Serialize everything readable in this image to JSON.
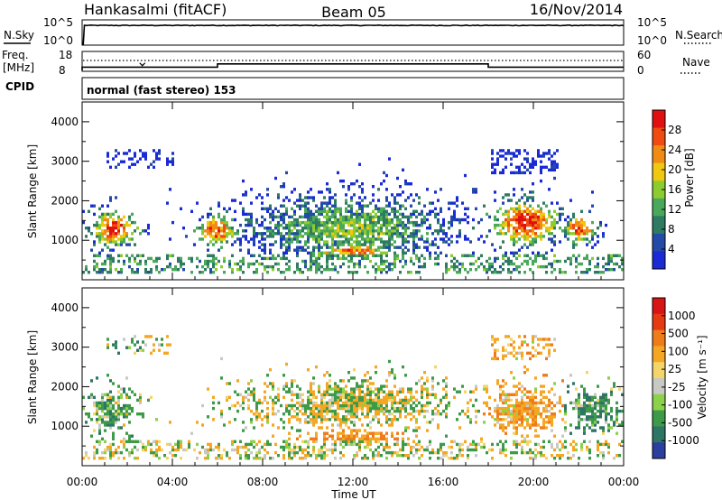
{
  "header": {
    "station": "Hankasalmi (fitACF)",
    "beam": "Beam 05",
    "date": "16/Nov/2014"
  },
  "noise_panel": {
    "left_label": "N.Sky",
    "right_label": "N.Search",
    "left_ticks": [
      "10^5",
      "10^0"
    ],
    "right_ticks": [
      "10^5",
      "10^0"
    ]
  },
  "freq_panel": {
    "left_label_1": "Freq.",
    "left_label_2": "[MHz]",
    "right_label": "Nave",
    "left_ticks": [
      "18",
      "8"
    ],
    "right_ticks": [
      "60",
      "0"
    ]
  },
  "cpid_panel": {
    "label": "CPID",
    "text": "normal (fast stereo) 153"
  },
  "power_panel": {
    "ylabel": "Slant Range [km]",
    "cbar_label": "Power [dB]",
    "cbar_ticks": [
      "28",
      "24",
      "20",
      "16",
      "12",
      "8",
      "4"
    ]
  },
  "velocity_panel": {
    "ylabel": "Slant Range [km]",
    "cbar_label": "Velocity [m s⁻¹]",
    "cbar_ticks": [
      "1000",
      "500",
      "100",
      "25",
      "-25",
      "-100",
      "-500",
      "-1000"
    ]
  },
  "x_axis": {
    "label": "Time UT",
    "ticks": [
      "00:00",
      "04:00",
      "08:00",
      "12:00",
      "16:00",
      "20:00",
      "00:00"
    ]
  },
  "colors": {
    "power_scale": [
      "#1a2bd6",
      "#244aa8",
      "#2e7a62",
      "#4aa85a",
      "#8ccc2e",
      "#f0c810",
      "#f08c14",
      "#f04b10",
      "#e01010"
    ],
    "velocity_scale": [
      "#2a3f9e",
      "#2e7566",
      "#3d9a48",
      "#8cd14a",
      "#c8c8c4",
      "#f5d46a",
      "#f5a623",
      "#ef7b1a",
      "#e63a12",
      "#d91414"
    ]
  },
  "chart_data": [
    {
      "type": "line",
      "title": "N.Sky",
      "x_range_hours": [
        0,
        24
      ],
      "y_scale": "log",
      "ylim": [
        1,
        100000
      ],
      "description_series": [
        {
          "name": "N.Sky",
          "x": [
            0.0,
            0.1,
            24.0
          ],
          "y": [
            1,
            10000,
            10000
          ]
        }
      ]
    },
    {
      "type": "line",
      "title": "Freq. [MHz]",
      "x_range_hours": [
        0,
        24
      ],
      "ylim": [
        8,
        18
      ],
      "series": [
        {
          "name": "Freq.",
          "x": [
            0.0,
            0.0,
            6.0,
            6.0,
            18.0,
            18.0,
            24.0
          ],
          "y": [
            8,
            10,
            10,
            12,
            12,
            10,
            10
          ]
        }
      ]
    },
    {
      "type": "heatmap",
      "title": "Power [dB]",
      "x_range_hours": [
        0,
        24
      ],
      "ylim": [
        0,
        4500
      ],
      "color_range": [
        0,
        30
      ],
      "blobs": [
        {
          "t0": 0.5,
          "t1": 2.2,
          "r0": 900,
          "r1": 1600,
          "v": 28
        },
        {
          "t0": 5.2,
          "t1": 6.6,
          "r0": 900,
          "r1": 1500,
          "v": 26
        },
        {
          "t0": 18.2,
          "t1": 21.0,
          "r0": 900,
          "r1": 1900,
          "v": 29
        },
        {
          "t0": 21.5,
          "t1": 22.5,
          "r0": 1000,
          "r1": 1500,
          "v": 26
        },
        {
          "t0": 7.0,
          "t1": 16.5,
          "r0": 500,
          "r1": 2000,
          "v": 14
        },
        {
          "t0": 10.0,
          "t1": 14.0,
          "r0": 500,
          "r1": 800,
          "v": 24
        }
      ]
    },
    {
      "type": "heatmap",
      "title": "Velocity [m s⁻¹]",
      "x_range_hours": [
        0,
        24
      ],
      "ylim": [
        0,
        4500
      ],
      "color_range": [
        -1000,
        1000
      ],
      "blobs": [
        {
          "t0": 0.5,
          "t1": 2.2,
          "r0": 900,
          "r1": 1800,
          "v": 150
        },
        {
          "t0": 7.5,
          "t1": 16.5,
          "r0": 1000,
          "r1": 2000,
          "v": 0
        },
        {
          "t0": 10.0,
          "t1": 14.0,
          "r0": 500,
          "r1": 800,
          "v": -300
        },
        {
          "t0": 18.2,
          "t1": 21.0,
          "r0": 900,
          "r1": 1900,
          "v": -200
        },
        {
          "t0": 21.5,
          "t1": 23.5,
          "r0": 1000,
          "r1": 1800,
          "v": 200
        }
      ]
    }
  ]
}
